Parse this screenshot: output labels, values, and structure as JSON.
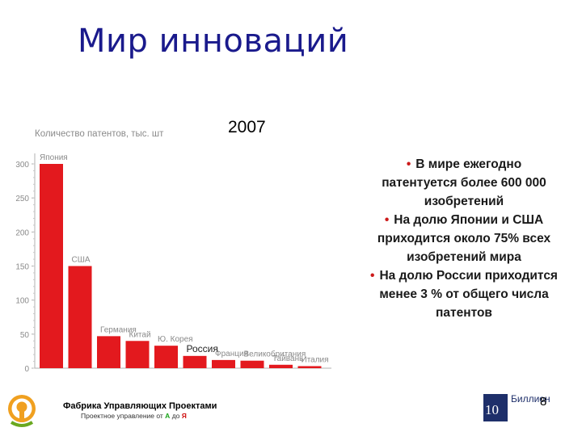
{
  "slide": {
    "title": "Мир инноваций",
    "year": "2007",
    "bullets": [
      "В мире ежегодно патентуется более 600 000 изобретений",
      "На долю Японии и США приходится около 75% всех изобретений мира",
      "На долю России приходится менее 3 % от общего числа патентов"
    ],
    "footer": {
      "company": "Фабрика Управляющих Проектами",
      "tagline_prefix": "Проектное управление от",
      "tagline_a": "А",
      "tagline_mid": "до",
      "tagline_ya": "Я",
      "page_number": "8",
      "right_logo_number": "10",
      "right_logo_text": "Биллион"
    },
    "colors": {
      "title": "#1a1a8c",
      "bar": "#e3191e",
      "bullet": "#cc1a1a",
      "logo_orange": "#f0a020",
      "logo_green": "#6aa820"
    }
  },
  "chart_data": {
    "type": "bar",
    "title": "Количество патентов, тыс. шт",
    "categories": [
      "Япония",
      "США",
      "Германия",
      "Китай",
      "Ю. Корея",
      "Россия",
      "Франция",
      "Великобритания",
      "Тайвань",
      "Италия"
    ],
    "values": [
      300,
      150,
      47,
      40,
      33,
      18,
      12,
      11,
      5,
      3
    ],
    "ylim": [
      0,
      300
    ],
    "yticks": [
      0,
      50,
      100,
      150,
      200,
      250,
      300
    ],
    "xlabel": "",
    "ylabel": "",
    "grid": false,
    "bar_color": "#e3191e",
    "highlight_label": "Россия"
  }
}
